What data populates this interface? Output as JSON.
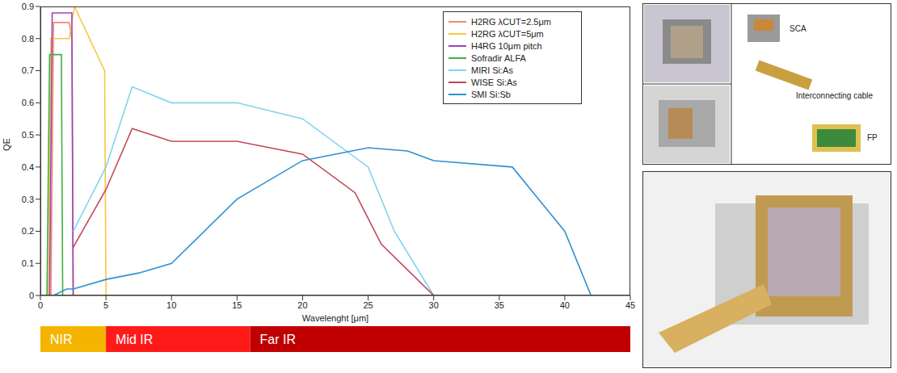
{
  "chart_data": {
    "type": "line",
    "x_label": "Wavelenght [μm]",
    "y_label": "QE",
    "xlim": [
      0,
      45
    ],
    "xticks": [
      0,
      5,
      10,
      15,
      20,
      25,
      30,
      35,
      40,
      45
    ],
    "ylim": [
      0,
      0.9
    ],
    "yticks": [
      0,
      0.1,
      0.2,
      0.3,
      0.4,
      0.5,
      0.6,
      0.7,
      0.8,
      0.9
    ],
    "grid": false,
    "legend": "upper right",
    "series": [
      {
        "name": "H2RG λCUT=2.5μm",
        "color": "#f08a6a",
        "x": [
          0.8,
          1,
          2.2,
          2.4,
          2.5
        ],
        "values": [
          0,
          0.85,
          0.85,
          0.8,
          0
        ]
      },
      {
        "name": "H2RG λCUT=5μm",
        "color": "#f5c842",
        "x": [
          0.6,
          0.8,
          2.2,
          2.6,
          4.9,
          5
        ],
        "values": [
          0,
          0.8,
          0.8,
          0.9,
          0.7,
          0
        ]
      },
      {
        "name": "H4RG 10μm pitch",
        "color": "#a040c0",
        "x": [
          0.7,
          0.9,
          2.4,
          2.5
        ],
        "values": [
          0,
          0.88,
          0.88,
          0
        ]
      },
      {
        "name": "Sofradir ALFA",
        "color": "#40b040",
        "x": [
          0.5,
          0.7,
          1.6,
          1.7
        ],
        "values": [
          0,
          0.75,
          0.75,
          0
        ]
      },
      {
        "name": "MIRI Si:As",
        "color": "#80d4f0",
        "x": [
          2.5,
          5,
          7,
          10,
          15,
          20,
          25,
          27,
          30
        ],
        "values": [
          0.2,
          0.4,
          0.65,
          0.6,
          0.6,
          0.55,
          0.4,
          0.2,
          0
        ]
      },
      {
        "name": "WISE Si:As",
        "color": "#c04858",
        "x": [
          2.5,
          5,
          7,
          10,
          15,
          20,
          24,
          26,
          30
        ],
        "values": [
          0.15,
          0.33,
          0.52,
          0.48,
          0.48,
          0.44,
          0.32,
          0.16,
          0
        ]
      },
      {
        "name": "SMI Si:Sb",
        "color": "#3090d0",
        "x": [
          1,
          2,
          2.5,
          5,
          7.5,
          10,
          15,
          20,
          25,
          28,
          30,
          36,
          40,
          42
        ],
        "values": [
          0,
          0.02,
          0.02,
          0.05,
          0.07,
          0.1,
          0.3,
          0.42,
          0.46,
          0.45,
          0.42,
          0.4,
          0.2,
          0
        ]
      }
    ]
  },
  "wavelength_bands": [
    {
      "label": "NIR",
      "from": 0,
      "to": 5,
      "color": "#f5b400"
    },
    {
      "label": "Mid IR",
      "from": 5,
      "to": 16,
      "color": "#ff1a1a"
    },
    {
      "label": "Far IR",
      "from": 16,
      "to": 45,
      "color": "#c00000"
    }
  ],
  "photo_labels": [
    "SCA",
    "Interconnecting cable",
    "FP"
  ]
}
